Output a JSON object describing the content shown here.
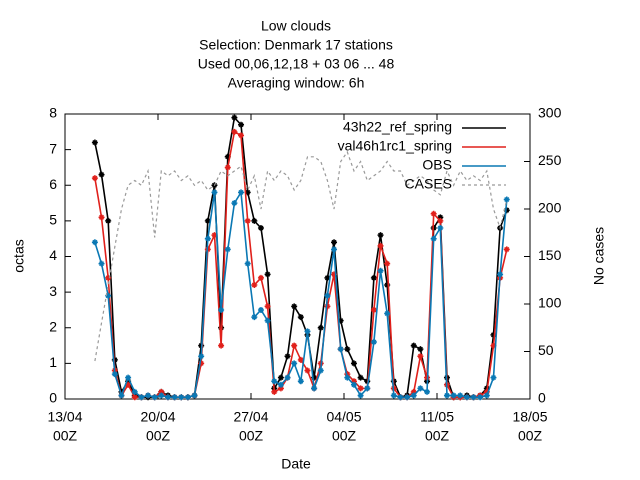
{
  "chart_data": {
    "type": "line",
    "title": "Low clouds",
    "subtitle": [
      "Selection: Denmark      17 stations",
      "Used  00,06,12,18  + 03 06 ... 48",
      "Averaging window:  6h"
    ],
    "xlabel": "Date",
    "ylabel": "octas",
    "y2label": "No cases",
    "x": [
      2.25,
      2.75,
      3.25,
      3.75,
      4.25,
      4.75,
      5.25,
      5.75,
      6.25,
      6.75,
      7.25,
      7.75,
      8.25,
      8.75,
      9.25,
      9.75,
      10.25,
      10.75,
      11.25,
      11.75,
      12.25,
      12.75,
      13.25,
      13.75,
      14.25,
      14.75,
      15.25,
      15.75,
      16.25,
      16.75,
      17.25,
      17.75,
      18.25,
      18.75,
      19.25,
      19.75,
      20.25,
      20.75,
      21.25,
      21.75,
      22.25,
      22.75,
      23.25,
      23.75,
      24.25,
      24.75,
      25.25,
      25.75,
      26.25,
      26.75,
      27.25,
      27.75,
      28.25,
      28.75,
      29.25,
      29.75,
      30.25,
      30.75,
      31.25,
      31.75,
      32.25,
      32.75,
      33.25
    ],
    "xlim": [
      0,
      35
    ],
    "xticks": [
      {
        "value": 0,
        "label": [
          "13/04",
          "00Z"
        ]
      },
      {
        "value": 7,
        "label": [
          "20/04",
          "00Z"
        ]
      },
      {
        "value": 14,
        "label": [
          "27/04",
          "00Z"
        ]
      },
      {
        "value": 21,
        "label": [
          "04/05",
          "00Z"
        ]
      },
      {
        "value": 28,
        "label": [
          "11/05",
          "00Z"
        ]
      },
      {
        "value": 35,
        "label": [
          "18/05",
          "00Z"
        ]
      }
    ],
    "ylim": [
      0,
      8
    ],
    "yticks": [
      0,
      1,
      2,
      3,
      4,
      5,
      6,
      7,
      8
    ],
    "y2lim": [
      0,
      300
    ],
    "y2ticks": [
      0,
      50,
      100,
      150,
      200,
      250,
      300
    ],
    "series": [
      {
        "name": "43h22_ref_spring",
        "color": "#000000",
        "values": [
          7.2,
          6.3,
          5.0,
          1.1,
          0.2,
          0.5,
          0.1,
          0.05,
          0.05,
          0.05,
          0.2,
          0.1,
          0.05,
          0.05,
          0.05,
          0.1,
          1.5,
          5.0,
          6.0,
          2.0,
          6.8,
          7.9,
          7.7,
          5.8,
          5.0,
          4.8,
          3.5,
          0.3,
          0.6,
          1.2,
          2.6,
          2.3,
          1.8,
          0.6,
          2.0,
          3.4,
          4.4,
          2.2,
          1.4,
          1.0,
          0.6,
          0.5,
          3.4,
          4.6,
          3.2,
          0.5,
          0.05,
          0.1,
          1.5,
          1.4,
          0.5,
          4.8,
          5.1,
          0.6,
          0.05,
          0.05,
          0.1,
          0.05,
          0.1,
          0.3,
          1.8,
          4.8,
          5.3
        ]
      },
      {
        "name": "val46h1rc1_spring",
        "color": "#e0201b",
        "values": [
          6.2,
          5.1,
          3.4,
          0.8,
          0.1,
          0.4,
          0.05,
          0.05,
          0.1,
          0.05,
          0.2,
          0.05,
          0.05,
          0.05,
          0.05,
          0.1,
          1.0,
          4.2,
          4.6,
          1.5,
          6.5,
          7.5,
          7.4,
          5.0,
          3.2,
          3.4,
          2.6,
          0.2,
          0.3,
          0.6,
          1.5,
          1.1,
          0.8,
          0.3,
          1.0,
          2.6,
          3.5,
          1.4,
          0.7,
          0.5,
          0.3,
          0.3,
          2.5,
          4.3,
          3.8,
          0.3,
          0.05,
          0.05,
          0.2,
          1.2,
          0.6,
          5.2,
          5.0,
          0.4,
          0.05,
          0.05,
          0.05,
          0.05,
          0.1,
          0.2,
          1.5,
          3.4,
          4.2
        ]
      },
      {
        "name": "OBS",
        "color": "#0a78b4",
        "values": [
          4.4,
          3.8,
          2.9,
          0.7,
          0.1,
          0.6,
          0.2,
          0.05,
          0.1,
          0.05,
          0.1,
          0.05,
          0.05,
          0.05,
          0.05,
          0.1,
          1.2,
          4.5,
          5.8,
          2.5,
          4.2,
          5.5,
          5.8,
          3.8,
          2.3,
          2.5,
          2.2,
          0.5,
          0.4,
          0.6,
          1.0,
          0.5,
          1.9,
          0.3,
          0.8,
          2.9,
          4.2,
          1.4,
          0.6,
          0.4,
          0.1,
          0.3,
          1.6,
          3.6,
          2.4,
          0.1,
          0.05,
          0.05,
          0.1,
          0.3,
          0.2,
          4.5,
          4.8,
          0.1,
          0.1,
          0.1,
          0.05,
          0.05,
          0.05,
          0.1,
          0.6,
          3.5,
          5.6
        ]
      },
      {
        "name": "CASES",
        "color": "#999999",
        "axis": "y2",
        "dashed": true,
        "values": [
          40,
          80,
          120,
          160,
          200,
          225,
          230,
          225,
          240,
          170,
          240,
          235,
          240,
          230,
          235,
          225,
          230,
          220,
          225,
          240,
          235,
          240,
          245,
          220,
          235,
          200,
          240,
          230,
          240,
          235,
          220,
          230,
          255,
          255,
          250,
          230,
          200,
          250,
          260,
          240,
          250,
          230,
          235,
          240,
          250,
          240,
          240,
          225,
          230,
          235,
          230,
          220,
          215,
          240,
          225,
          240,
          230,
          235,
          230,
          240,
          200,
          180,
          210
        ]
      }
    ],
    "legend": "top-right"
  }
}
